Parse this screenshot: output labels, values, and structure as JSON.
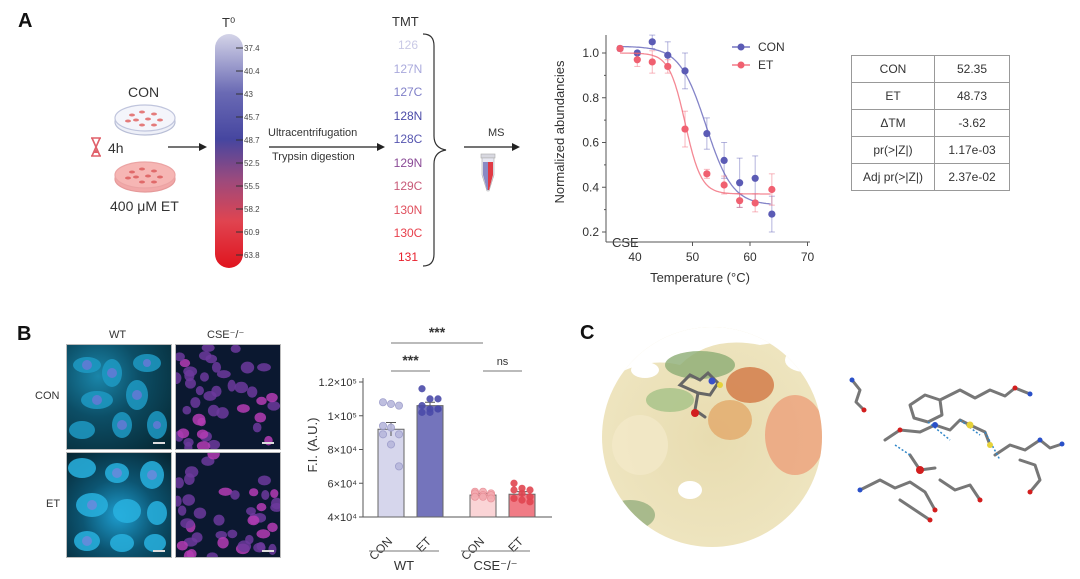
{
  "panelA": {
    "letter": "A",
    "con_label": "CON",
    "time_label": "4h",
    "et_label": "400 μM ET",
    "thermo_title": "T⁰",
    "temperatures": [
      "37.4",
      "40.4",
      "43",
      "45.7",
      "48.7",
      "52.5",
      "55.5",
      "58.2",
      "60.9",
      "63.8"
    ],
    "step_top": "Ultracentrifugation",
    "step_bottom": "Trypsin digestion",
    "tmt_title": "TMT",
    "tmt_labels": [
      {
        "label": "126",
        "color": "#c9c9e6"
      },
      {
        "label": "127N",
        "color": "#a9a9dc"
      },
      {
        "label": "127C",
        "color": "#8080c8"
      },
      {
        "label": "128N",
        "color": "#4a4aa8"
      },
      {
        "label": "128C",
        "color": "#5656b0"
      },
      {
        "label": "129N",
        "color": "#8a4a96"
      },
      {
        "label": "129C",
        "color": "#c85a78"
      },
      {
        "label": "130N",
        "color": "#e0505e"
      },
      {
        "label": "130C",
        "color": "#e8404c"
      },
      {
        "label": "131",
        "color": "#e8202c"
      }
    ],
    "ms_label": "MS",
    "stats_table": [
      {
        "key": "CON",
        "value": "52.35"
      },
      {
        "key": "ET",
        "value": "48.73"
      },
      {
        "key": "ΔTM",
        "value": "-3.62"
      },
      {
        "key": "pr(>|Z|)",
        "value": "1.17e-03"
      },
      {
        "key": "Adj pr(>|Z|)",
        "value": "2.37e-02"
      }
    ]
  },
  "panelB": {
    "letter": "B",
    "col_labels": [
      "WT",
      "CSE⁻/⁻"
    ],
    "row_labels": [
      "CON",
      "ET"
    ]
  },
  "panelC": {
    "letter": "C"
  },
  "chart_data": [
    {
      "type": "line",
      "title": "",
      "annotation": "CSE",
      "xlabel": "Temperature (°C)",
      "ylabel": "Normalized abundancies",
      "xlim": [
        35,
        70
      ],
      "ylim": [
        0.2,
        1.1
      ],
      "xticks": [
        40,
        50,
        60,
        70
      ],
      "yticks": [
        0.2,
        0.4,
        0.6,
        0.8,
        1.0
      ],
      "ytick_labels": [
        "0.2",
        "0.4",
        "0.6",
        "0.8",
        "1.0"
      ],
      "legend_position": "top-right",
      "x": [
        37.4,
        40.4,
        43,
        45.7,
        48.7,
        52.5,
        55.5,
        58.2,
        60.9,
        63.8
      ],
      "series": [
        {
          "name": "CON",
          "color": "#5b5bb5",
          "values": [
            1.02,
            1.0,
            1.05,
            0.99,
            0.92,
            0.64,
            0.52,
            0.42,
            0.44,
            0.28
          ],
          "errors": [
            0.01,
            0.01,
            0.03,
            0.06,
            0.08,
            0.07,
            0.08,
            0.11,
            0.1,
            0.08
          ],
          "fit": {
            "top": 1.03,
            "bottom": 0.32,
            "tm": 52.35,
            "slope": 2.3
          }
        },
        {
          "name": "ET",
          "color": "#f06070",
          "values": [
            1.02,
            0.97,
            0.96,
            0.94,
            0.66,
            0.46,
            0.41,
            0.34,
            0.33,
            0.39
          ],
          "errors": [
            0.01,
            0.03,
            0.05,
            0.03,
            0.08,
            0.02,
            0.04,
            0.03,
            0.04,
            0.07
          ],
          "fit": {
            "top": 1.0,
            "bottom": 0.37,
            "tm": 48.73,
            "slope": 1.4
          }
        }
      ]
    },
    {
      "type": "bar",
      "ylabel": "F.I. (A.U.)",
      "ylim": [
        40000,
        120000
      ],
      "yticks": [
        40000,
        60000,
        80000,
        100000,
        120000
      ],
      "ytick_labels": [
        "4×10⁴",
        "6×10⁴",
        "8×10⁴",
        "1×10⁵",
        "1.2×10⁵"
      ],
      "categories": [
        "CON",
        "ET",
        "CON",
        "ET"
      ],
      "groups": [
        {
          "label": "WT",
          "members": [
            0,
            1
          ]
        },
        {
          "label": "CSE⁻/⁻",
          "members": [
            2,
            3
          ]
        }
      ],
      "values": [
        92000,
        106000,
        53000,
        53500
      ],
      "errors": [
        4000,
        2000,
        1000,
        1500
      ],
      "bar_colors": [
        "#d6d6ec",
        "#7474bc",
        "#fad4d6",
        "#f07b85"
      ],
      "dot_colors": [
        "#b8b8dc",
        "#4a4aa8",
        "#f3aab0",
        "#e04550"
      ],
      "points": [
        [
          108000,
          107000,
          106000,
          94000,
          93000,
          89000,
          89000,
          83000,
          70000
        ],
        [
          116000,
          110000,
          110000,
          106000,
          104000,
          104000,
          102000,
          102000,
          104000
        ],
        [
          55000,
          55000,
          54000,
          54000,
          53000,
          53000,
          52000,
          52000,
          51000
        ],
        [
          60000,
          57000,
          56000,
          56000,
          54000,
          52000,
          51000,
          50000,
          49000
        ]
      ],
      "significance": [
        {
          "label": "***",
          "from": 0,
          "to": 1
        },
        {
          "label": "ns",
          "from": 2,
          "to": 3
        },
        {
          "label": "***",
          "from": 0,
          "to": 2
        }
      ]
    }
  ]
}
